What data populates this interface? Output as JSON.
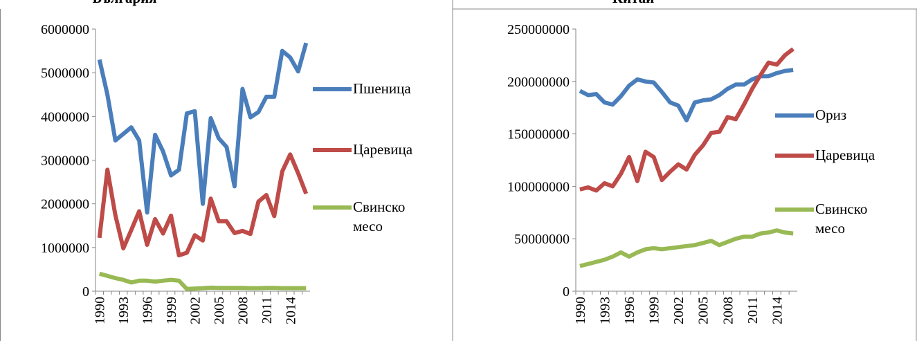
{
  "chart_data": [
    {
      "type": "line",
      "title": "България",
      "categories": [
        "1990",
        null,
        null,
        "1993",
        null,
        null,
        "1996",
        null,
        null,
        "1999",
        null,
        null,
        "2002",
        null,
        null,
        "2005",
        null,
        null,
        "2008",
        null,
        null,
        "2011",
        null,
        null,
        "2014",
        null,
        null
      ],
      "ylim": [
        0,
        6000000
      ],
      "yticks": [
        0,
        1000000,
        2000000,
        3000000,
        4000000,
        5000000,
        6000000
      ],
      "series": [
        {
          "name": "Пшеница",
          "color": "#4a7ebb",
          "values": [
            5300000,
            4500000,
            3450000,
            3600000,
            3750000,
            3450000,
            1800000,
            3580000,
            3200000,
            2650000,
            2780000,
            4070000,
            4120000,
            2000000,
            3960000,
            3500000,
            3300000,
            2400000,
            4630000,
            3980000,
            4100000,
            4450000,
            4450000,
            5500000,
            5350000,
            5030000,
            5680000
          ]
        },
        {
          "name": "Царевица",
          "color": "#be4b48",
          "values": [
            1220000,
            2780000,
            1740000,
            980000,
            1400000,
            1830000,
            1060000,
            1650000,
            1320000,
            1730000,
            820000,
            880000,
            1280000,
            1160000,
            2120000,
            1600000,
            1600000,
            1330000,
            1380000,
            1310000,
            2050000,
            2200000,
            1720000,
            2740000,
            3130000,
            2700000,
            2230000
          ]
        },
        {
          "name": "Свинско месо",
          "color": "#98b954",
          "values": [
            400000,
            350000,
            300000,
            260000,
            200000,
            240000,
            240000,
            220000,
            240000,
            260000,
            240000,
            50000,
            60000,
            70000,
            80000,
            75000,
            75000,
            75000,
            75000,
            70000,
            70000,
            75000,
            75000,
            70000,
            70000,
            70000,
            70000
          ]
        }
      ]
    },
    {
      "type": "line",
      "title": "Китай",
      "categories": [
        "1990",
        null,
        null,
        "1993",
        null,
        null,
        "1996",
        null,
        null,
        "1999",
        null,
        null,
        "2002",
        null,
        null,
        "2005",
        null,
        null,
        "2008",
        null,
        null,
        "2011",
        null,
        null,
        "2014",
        null,
        null
      ],
      "ylim": [
        0,
        250000000
      ],
      "yticks": [
        0,
        50000000,
        100000000,
        150000000,
        200000000,
        250000000
      ],
      "series": [
        {
          "name": "Ориз",
          "color": "#4a7ebb",
          "values": [
            191000000,
            187000000,
            188000000,
            180000000,
            178000000,
            186000000,
            196000000,
            202000000,
            200000000,
            199000000,
            190000000,
            180000000,
            177000000,
            163000000,
            180000000,
            182000000,
            183000000,
            187000000,
            193000000,
            197000000,
            197000000,
            202000000,
            205000000,
            205000000,
            208000000,
            210000000,
            211000000
          ]
        },
        {
          "name": "Царевица",
          "color": "#be4b48",
          "values": [
            97000000,
            99000000,
            96000000,
            103000000,
            100000000,
            112000000,
            128000000,
            105000000,
            133000000,
            128000000,
            106000000,
            114000000,
            121000000,
            116000000,
            130000000,
            139000000,
            151000000,
            152000000,
            166000000,
            164000000,
            178000000,
            193000000,
            206000000,
            218000000,
            216000000,
            225000000,
            231000000
          ]
        },
        {
          "name": "Свинско месо",
          "color": "#98b954",
          "values": [
            24000000,
            26000000,
            28000000,
            30000000,
            33000000,
            37000000,
            33000000,
            37000000,
            40000000,
            41000000,
            40000000,
            41000000,
            42000000,
            43000000,
            44000000,
            46000000,
            48000000,
            44000000,
            47000000,
            50000000,
            52000000,
            52000000,
            55000000,
            56000000,
            58000000,
            56000000,
            55000000
          ]
        }
      ]
    }
  ]
}
